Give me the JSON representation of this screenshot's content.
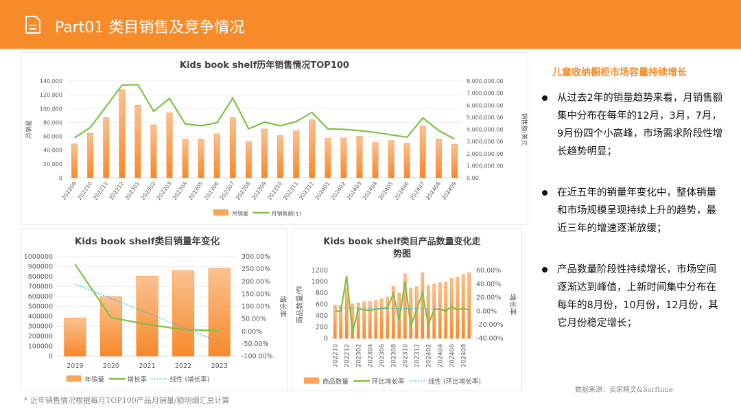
{
  "header": {
    "title": "Part01 类目销售及竞争情况",
    "icon": "document-icon"
  },
  "colors": {
    "accent": "#F78B2A",
    "bar": "#F9A35B",
    "line": "#7DC242",
    "trend": "#3FB6D9"
  },
  "chart_data": [
    {
      "type": "bar+line",
      "title": "Kids book shelf历年销售情况TOP100",
      "ylabel": "月销量",
      "y2label": "销售额/美元",
      "categories": [
        "202209",
        "202210",
        "202211",
        "202212",
        "202301",
        "202302",
        "202303",
        "202304",
        "202305",
        "202306",
        "202307",
        "202308",
        "202309",
        "202310",
        "202311",
        "202312",
        "202401",
        "202402",
        "202403",
        "202404",
        "202405",
        "202406",
        "202407",
        "202408",
        "202409"
      ],
      "ylim": [
        0,
        140000
      ],
      "yticks": [
        "0",
        "20,000",
        "40,000",
        "60,000",
        "80,000",
        "100,000",
        "120,000",
        "140,000"
      ],
      "y2lim": [
        0,
        8000000
      ],
      "y2ticks": [
        "0.00",
        "1,000,000.00",
        "2,000,000.00",
        "3,000,000.00",
        "4,000,000.00",
        "5,000,000.00",
        "6,000,000.00",
        "7,000,000.00",
        "8,000,000.00"
      ],
      "series": [
        {
          "name": "月销量",
          "kind": "bar",
          "axis": "left",
          "values": [
            49000,
            64500,
            87000,
            127500,
            105000,
            76500,
            94000,
            56000,
            56000,
            63500,
            87000,
            52500,
            70500,
            61000,
            68000,
            84000,
            57000,
            57500,
            60000,
            51000,
            54000,
            50000,
            75000,
            56000,
            48500
          ]
        },
        {
          "name": "月销售额($)",
          "kind": "line",
          "axis": "right",
          "values": [
            3300000,
            4150000,
            5900000,
            7650000,
            7700000,
            5500000,
            6550000,
            4450000,
            4300000,
            4550000,
            6600000,
            4050000,
            4600000,
            4300000,
            4650000,
            5400000,
            4050000,
            4000000,
            3900000,
            3750000,
            3550000,
            3350000,
            4950000,
            3900000,
            3200000
          ]
        }
      ],
      "grid": true,
      "legend": "bottom"
    },
    {
      "type": "bar+line",
      "title": "Kids book shelf类目销量年变化",
      "y2label": "增长率",
      "categories": [
        "2019",
        "2020",
        "2021",
        "2022",
        "2023"
      ],
      "ylim": [
        0,
        1000000
      ],
      "yticks": [
        "0",
        "100000",
        "200000",
        "300000",
        "400000",
        "500000",
        "600000",
        "700000",
        "800000",
        "900000",
        "1000000"
      ],
      "y2lim": [
        -100,
        300
      ],
      "y2ticks": [
        "-100.00%",
        "-50.00%",
        "0.00%",
        "50.00%",
        "100.00%",
        "150.00%",
        "200.00%",
        "250.00%",
        "300.00%"
      ],
      "series": [
        {
          "name": "年销量",
          "kind": "bar",
          "axis": "left",
          "values": [
            385000,
            600000,
            805000,
            860000,
            885000
          ]
        },
        {
          "name": "增长率",
          "kind": "line",
          "axis": "right",
          "values": [
            270,
            55,
            28,
            7,
            3
          ]
        },
        {
          "name": "线性 (增长率)",
          "kind": "trend",
          "axis": "right",
          "values": [
            190,
            132,
            74,
            16,
            -42
          ]
        }
      ],
      "grid": true,
      "legend": "bottom"
    },
    {
      "type": "bar+line",
      "title": "Kids book shelf类目产品数量变化走势图",
      "title_lines": [
        "Kids book shelf类目产品数量变化走",
        "势图"
      ],
      "ylabel": "商品数量/件",
      "y2label": "增长率",
      "categories": [
        "202210",
        "202211",
        "202212",
        "202301",
        "202302",
        "202303",
        "202304",
        "202305",
        "202306",
        "202307",
        "202308",
        "202309",
        "202310",
        "202311",
        "202312",
        "202401",
        "202402",
        "202403",
        "202404",
        "202405",
        "202406",
        "202407",
        "202408",
        "202409"
      ],
      "xtick_labels": [
        "202210",
        "202212",
        "202302",
        "202304",
        "202306",
        "202308",
        "202310",
        "202312",
        "202402",
        "202404",
        "202406",
        "202408"
      ],
      "ylim": [
        0,
        1200
      ],
      "yticks": [
        "0",
        "200",
        "400",
        "600",
        "800",
        "1000",
        "1200"
      ],
      "y2lim": [
        -40,
        60
      ],
      "y2ticks": [
        "-40.00%",
        "-20.00%",
        "0.00%",
        "20.00%",
        "40.00%",
        "60.00%"
      ],
      "series": [
        {
          "name": "商品数量",
          "kind": "bar",
          "axis": "left",
          "values": [
            590,
            590,
            900,
            610,
            630,
            645,
            650,
            670,
            700,
            730,
            920,
            800,
            1140,
            890,
            910,
            1160,
            930,
            960,
            985,
            990,
            1060,
            1080,
            1130,
            1160
          ]
        },
        {
          "name": "环比增长率",
          "kind": "line",
          "axis": "right",
          "values": [
            0,
            0,
            52,
            -32,
            3,
            2,
            1,
            3,
            4,
            5,
            26,
            -14,
            44,
            -22,
            2,
            27,
            -20,
            3,
            3,
            0,
            7,
            2,
            4,
            2
          ]
        },
        {
          "name": "线性 (环比增长率)",
          "kind": "trend",
          "axis": "right",
          "values": [
            5,
            4.9,
            4.8,
            4.7,
            4.6,
            4.5,
            4.4,
            4.3,
            4.2,
            4.1,
            4,
            3.9,
            3.8,
            3.7,
            3.6,
            3.5,
            3.4,
            3.3,
            3.2,
            3.1,
            3,
            2.9,
            2.8,
            2.7
          ]
        }
      ],
      "grid": false,
      "legend": "bottom"
    }
  ],
  "side": {
    "title": "儿童收纳橱柜市场容量持续增长",
    "bullets": [
      "从过去2年的销量趋势来看，月销售额集中分布在每年的12月，3月，7月，9月份四个小高峰，市场需求阶段性增长趋势明显；",
      "在近五年的销量年变化中，整体销量和市场规模呈现持续上升的趋势，最近三年的增速逐渐放缓；",
      "产品数量阶段性持续增长，市场空间逐渐达到峰值，上新时间集中分布在每年的8月份，10月份，12月份，其它月份稳定增长；"
    ]
  },
  "footer": {
    "note": "* 近年销售情况根据每月TOP100产品月销量/额明细汇总计算",
    "source": "数据来源：卖家精灵&Sorftime"
  }
}
